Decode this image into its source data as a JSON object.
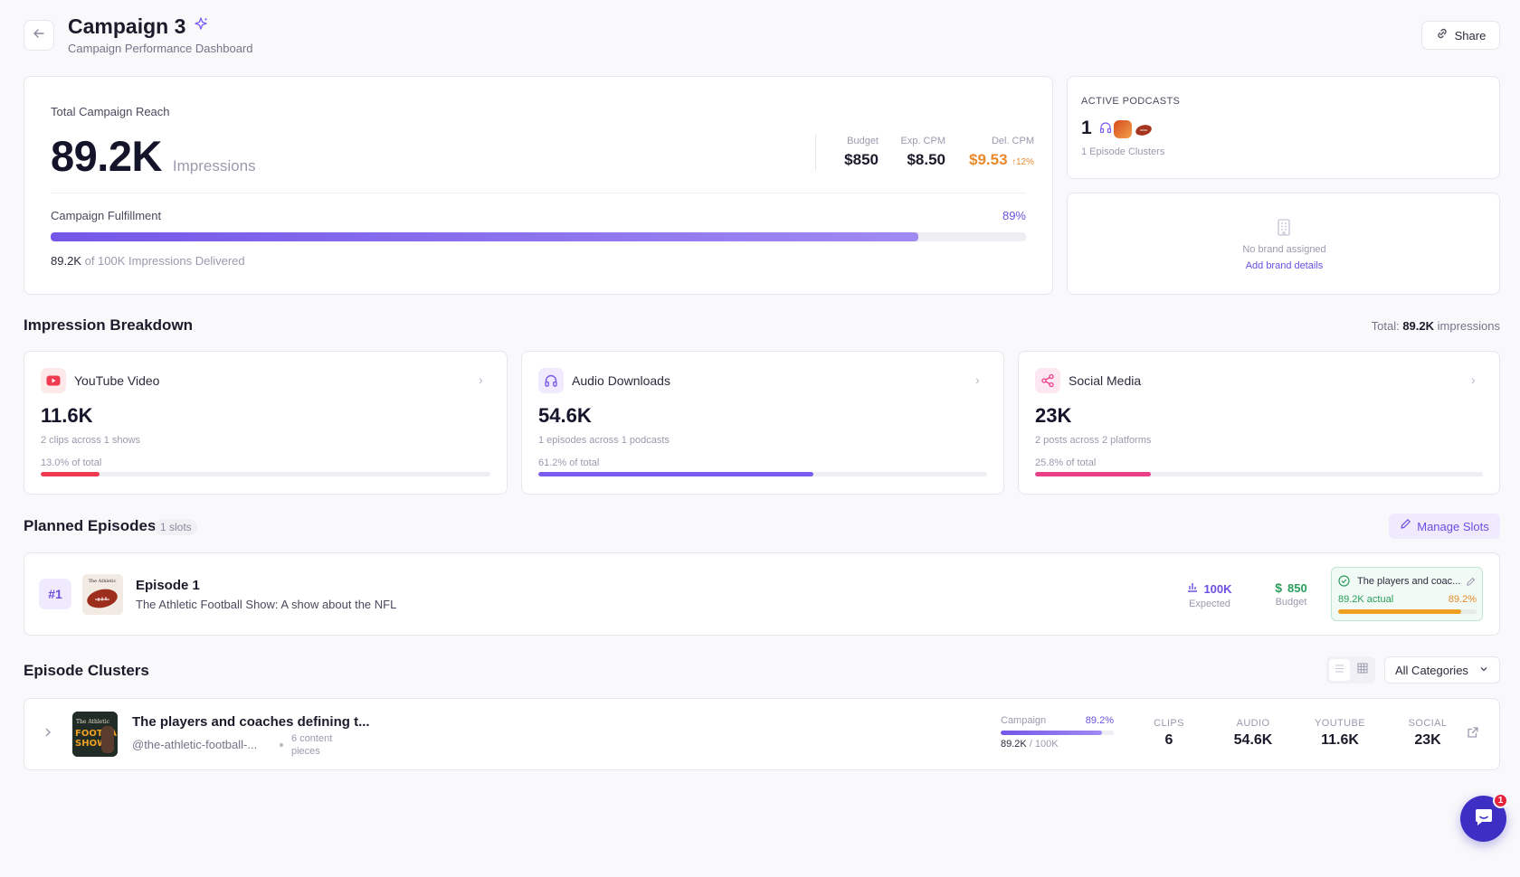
{
  "header": {
    "title": "Campaign 3",
    "subtitle": "Campaign Performance Dashboard",
    "share_label": "Share"
  },
  "reach": {
    "label": "Total Campaign Reach",
    "value": "89.2K",
    "unit": "Impressions",
    "metrics": [
      {
        "label": "Budget",
        "value": "$850"
      },
      {
        "label": "Exp. CPM",
        "value": "$8.50"
      },
      {
        "label": "Del. CPM",
        "value": "$9.53",
        "delta": "↑12%"
      }
    ],
    "fulfillment_label": "Campaign Fulfillment",
    "fulfillment_pct": "89%",
    "fulfillment_fraction": 0.89,
    "delivered_value": "89.2K",
    "delivered_rest": " of 100K Impressions Delivered"
  },
  "podcasts": {
    "label": "ACTIVE PODCASTS",
    "count": "1",
    "clusters": "1 Episode Clusters"
  },
  "brand": {
    "empty_text": "No brand assigned",
    "add_link": "Add brand details"
  },
  "breakdown": {
    "title": "Impression Breakdown",
    "total_prefix": "Total: ",
    "total_value": "89.2K",
    "total_suffix": " impressions",
    "cards": [
      {
        "name": "YouTube Video",
        "value": "11.6K",
        "detail": "2 clips across 1 shows",
        "share": "13.0% of total",
        "fraction": 0.13,
        "color": "#ef3a4f",
        "icon": "youtube-icon"
      },
      {
        "name": "Audio Downloads",
        "value": "54.6K",
        "detail": "1 episodes across 1 podcasts",
        "share": "61.2% of total",
        "fraction": 0.612,
        "color": "#7a5cf0",
        "icon": "headphones-icon"
      },
      {
        "name": "Social Media",
        "value": "23K",
        "detail": "2 posts across 2 platforms",
        "share": "25.8% of total",
        "fraction": 0.258,
        "color": "#ec3f8a",
        "icon": "share-icon"
      }
    ]
  },
  "planned": {
    "title": "Planned Episodes",
    "slots": "1 slots",
    "manage_label": "Manage Slots",
    "episode": {
      "rank": "#1",
      "name": "Episode 1",
      "show": "The Athletic Football Show: A show about the NFL",
      "expected_value": "100K",
      "expected_label": "Expected",
      "budget_value": "850",
      "budget_label": "Budget",
      "cluster_name": "The players and coac...",
      "actual": "89.2K actual",
      "actual_pct": "89.2%",
      "actual_fraction": 0.892
    }
  },
  "clusters": {
    "title": "Episode Clusters",
    "filter_label": "All Categories",
    "row": {
      "name": "The players and coaches defining t...",
      "handle": "@the-athletic-football-...",
      "pieces": "6 content pieces",
      "campaign_label": "Campaign",
      "campaign_pct": "89.2%",
      "campaign_fraction": 0.892,
      "campaign_value": "89.2K",
      "campaign_total": " / 100K",
      "cols": [
        {
          "label": "CLIPS",
          "value": "6"
        },
        {
          "label": "AUDIO",
          "value": "54.6K"
        },
        {
          "label": "YOUTUBE",
          "value": "11.6K"
        },
        {
          "label": "SOCIAL",
          "value": "23K"
        }
      ]
    }
  },
  "chat": {
    "badge": "1"
  }
}
